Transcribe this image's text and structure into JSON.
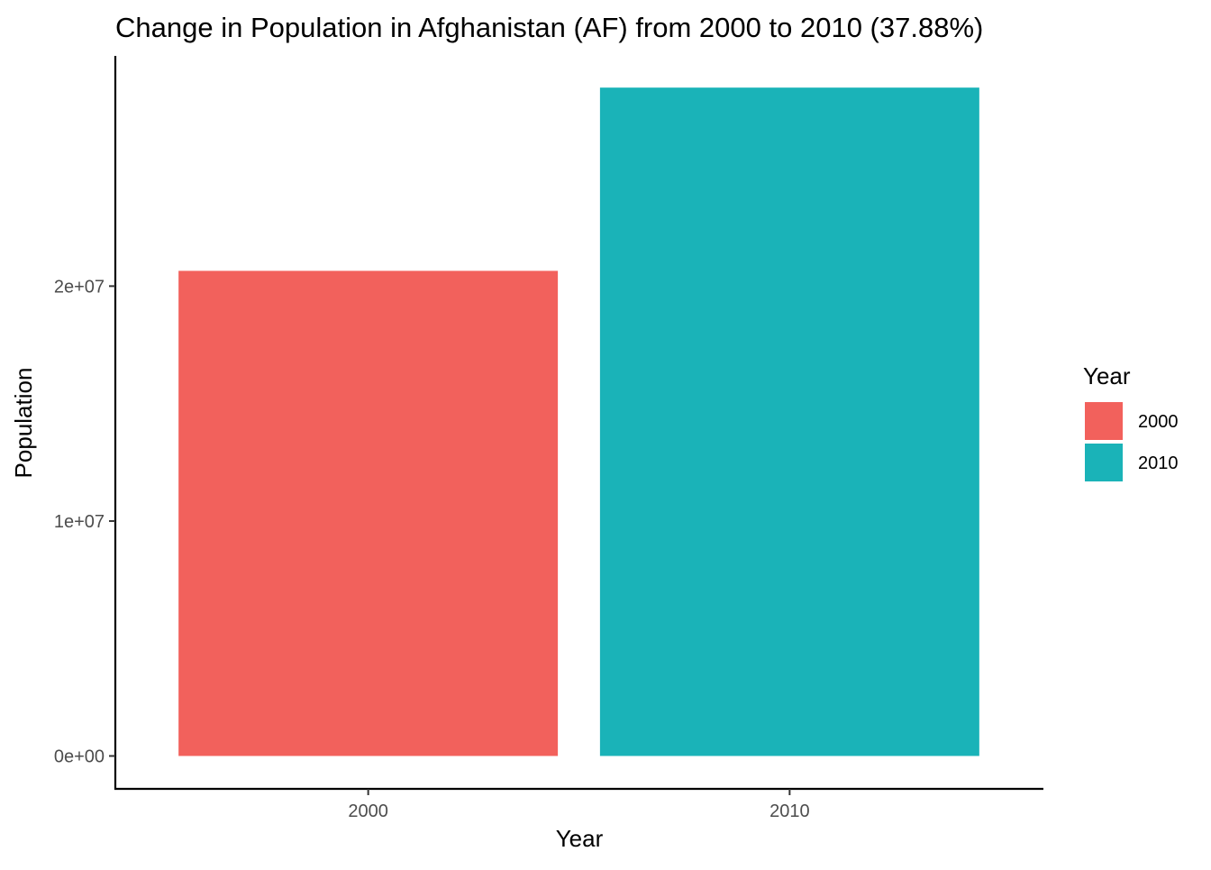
{
  "chart_data": {
    "type": "bar",
    "title": "Change in Population in Afghanistan (AF) from 2000 to 2010 (37.88%)",
    "xlabel": "Year",
    "ylabel": "Population",
    "categories": [
      "2000",
      "2010"
    ],
    "values": [
      20650000,
      28450000
    ],
    "colors": [
      "#F2615C",
      "#1AB3B8"
    ],
    "ylim": [
      -1400000,
      29800000
    ],
    "yticks": [
      {
        "value": 0,
        "label": "0e+00"
      },
      {
        "value": 10000000,
        "label": "1e+07"
      },
      {
        "value": 20000000,
        "label": "2e+07"
      }
    ],
    "grid": false,
    "legend": {
      "title": "Year",
      "position": "right",
      "items": [
        {
          "label": "2000",
          "color": "#F2615C"
        },
        {
          "label": "2010",
          "color": "#1AB3B8"
        }
      ]
    }
  }
}
